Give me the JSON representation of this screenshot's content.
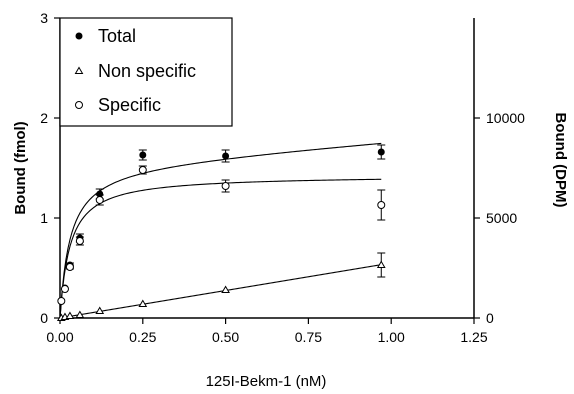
{
  "chart_data": {
    "type": "scatter",
    "xlabel": "125I-Bekm-1 (nM)",
    "ylabel_left": "Bound (fmol)",
    "ylabel_right": "Bound (DPM)",
    "xlim": [
      0,
      1.25
    ],
    "ylim_left": [
      0,
      3
    ],
    "ylim_right": [
      0,
      15000
    ],
    "x_ticks": [
      "0.00",
      "0.25",
      "0.50",
      "0.75",
      "1.00",
      "1.25"
    ],
    "y_left_ticks": [
      "0",
      "1",
      "2",
      "3"
    ],
    "y_right_ticks": [
      "0",
      "5000",
      "10000"
    ],
    "x_tick_values": [
      0,
      0.25,
      0.5,
      0.75,
      1.0,
      1.25
    ],
    "y_left_tick_values": [
      0,
      1,
      2,
      3
    ],
    "y_right_tick_values": [
      0,
      5000,
      10000
    ],
    "grid": false,
    "legend_position": "top-left",
    "series": [
      {
        "name": "Total",
        "marker": "filled-circle",
        "x": [
          0.004,
          0.015,
          0.03,
          0.06,
          0.12,
          0.25,
          0.5,
          0.97
        ],
        "y": [
          0.17,
          0.3,
          0.53,
          0.8,
          1.24,
          1.63,
          1.62,
          1.66
        ],
        "err": [
          0.0,
          0.0,
          0.02,
          0.04,
          0.05,
          0.05,
          0.06,
          0.07
        ],
        "fit": {
          "model": "saturation+linear",
          "Bmax": 1.55,
          "Kd": 0.03,
          "slope": 0.25
        }
      },
      {
        "name": "Non specific",
        "marker": "open-triangle",
        "x": [
          0.004,
          0.015,
          0.03,
          0.06,
          0.12,
          0.25,
          0.5,
          0.97
        ],
        "y": [
          0.0,
          0.01,
          0.02,
          0.03,
          0.07,
          0.14,
          0.28,
          0.53
        ],
        "err": [
          0.0,
          0.0,
          0.0,
          0.0,
          0.0,
          0.0,
          0.0,
          0.12
        ],
        "fit": {
          "model": "linear",
          "slope": 0.55
        }
      },
      {
        "name": "Specific",
        "marker": "open-circle",
        "x": [
          0.004,
          0.015,
          0.03,
          0.06,
          0.12,
          0.25,
          0.5,
          0.97
        ],
        "y": [
          0.17,
          0.29,
          0.51,
          0.77,
          1.18,
          1.48,
          1.32,
          1.13
        ],
        "err": [
          0.0,
          0.0,
          0.02,
          0.04,
          0.05,
          0.04,
          0.06,
          0.15
        ],
        "fit": {
          "model": "saturation",
          "Bmax": 1.43,
          "Kd": 0.03
        }
      }
    ]
  }
}
